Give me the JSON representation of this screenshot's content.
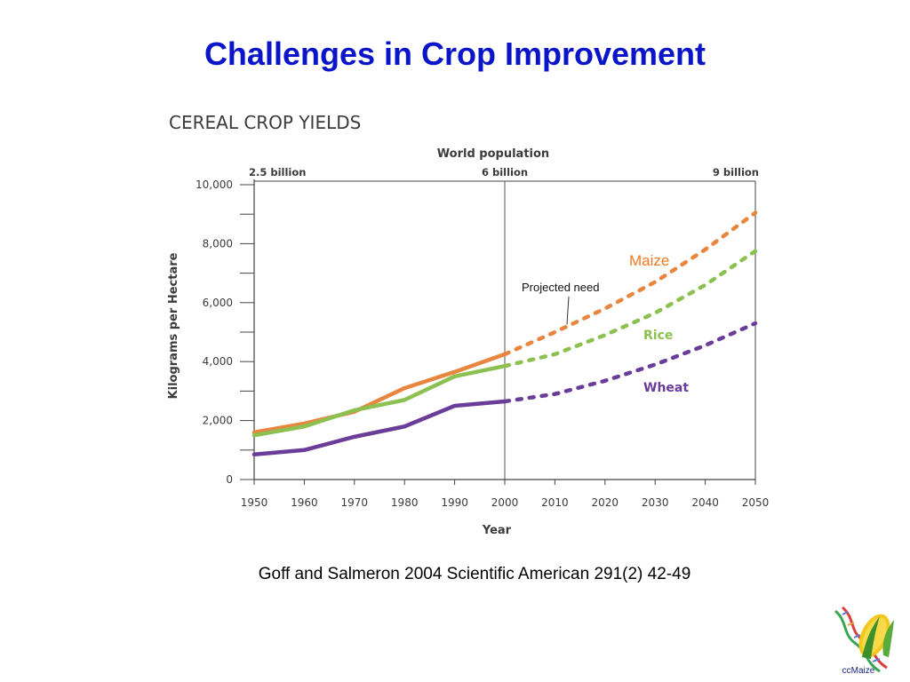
{
  "slide": {
    "title": "Challenges in Crop Improvement",
    "citation": "Goff and Salmeron 2004 Scientific American  291(2) 42-49",
    "logo_text": "ccMaize"
  },
  "colors": {
    "title": "#0a14c8",
    "maize": "#e8853f",
    "rice": "#8cc152",
    "wheat": "#6a3d99",
    "maize_label": "#f07820"
  },
  "chart_data": {
    "type": "line",
    "title": "CEREAL CROP YIELDS",
    "xlabel": "Year",
    "ylabel": "Kilograms per Hectare",
    "x_ticks": [
      "1950",
      "1960",
      "1970",
      "1980",
      "1990",
      "2000",
      "2010",
      "2020",
      "2030",
      "2040",
      "2050"
    ],
    "y_ticks": [
      "0",
      "2,000",
      "4,000",
      "6,000",
      "8,000",
      "10,000"
    ],
    "xlim": [
      1950,
      2050
    ],
    "ylim": [
      0,
      10000
    ],
    "top_axis": {
      "title": "World population",
      "labels": [
        {
          "year": 1950,
          "text": "2.5 billion"
        },
        {
          "year": 2000,
          "text": "6 billion"
        },
        {
          "year": 2050,
          "text": "9 billion"
        }
      ]
    },
    "series": [
      {
        "name": "Maize",
        "color_key": "maize",
        "x": [
          1950,
          1960,
          1970,
          1980,
          1990,
          2000
        ],
        "y": [
          1600,
          1900,
          2300,
          3100,
          3650,
          4250
        ],
        "projected_x": [
          2000,
          2010,
          2020,
          2030,
          2040,
          2050
        ],
        "projected_y": [
          4250,
          5000,
          5800,
          6700,
          7800,
          9050
        ]
      },
      {
        "name": "Rice",
        "color_key": "rice",
        "x": [
          1950,
          1960,
          1970,
          1980,
          1990,
          2000
        ],
        "y": [
          1500,
          1800,
          2350,
          2700,
          3500,
          3850
        ],
        "projected_x": [
          2000,
          2010,
          2020,
          2030,
          2040,
          2050
        ],
        "projected_y": [
          3850,
          4250,
          4900,
          5650,
          6600,
          7750
        ]
      },
      {
        "name": "Wheat",
        "color_key": "wheat",
        "x": [
          1950,
          1960,
          1970,
          1980,
          1990,
          2000
        ],
        "y": [
          850,
          1000,
          1450,
          1800,
          2500,
          2650
        ],
        "projected_x": [
          2000,
          2010,
          2020,
          2030,
          2040,
          2050
        ],
        "projected_y": [
          2650,
          2900,
          3350,
          3900,
          4550,
          5300
        ]
      }
    ],
    "annotation": {
      "text": "Projected need",
      "year": 2012,
      "value": 5200
    },
    "reference_line_year": 2000,
    "grid": false
  }
}
